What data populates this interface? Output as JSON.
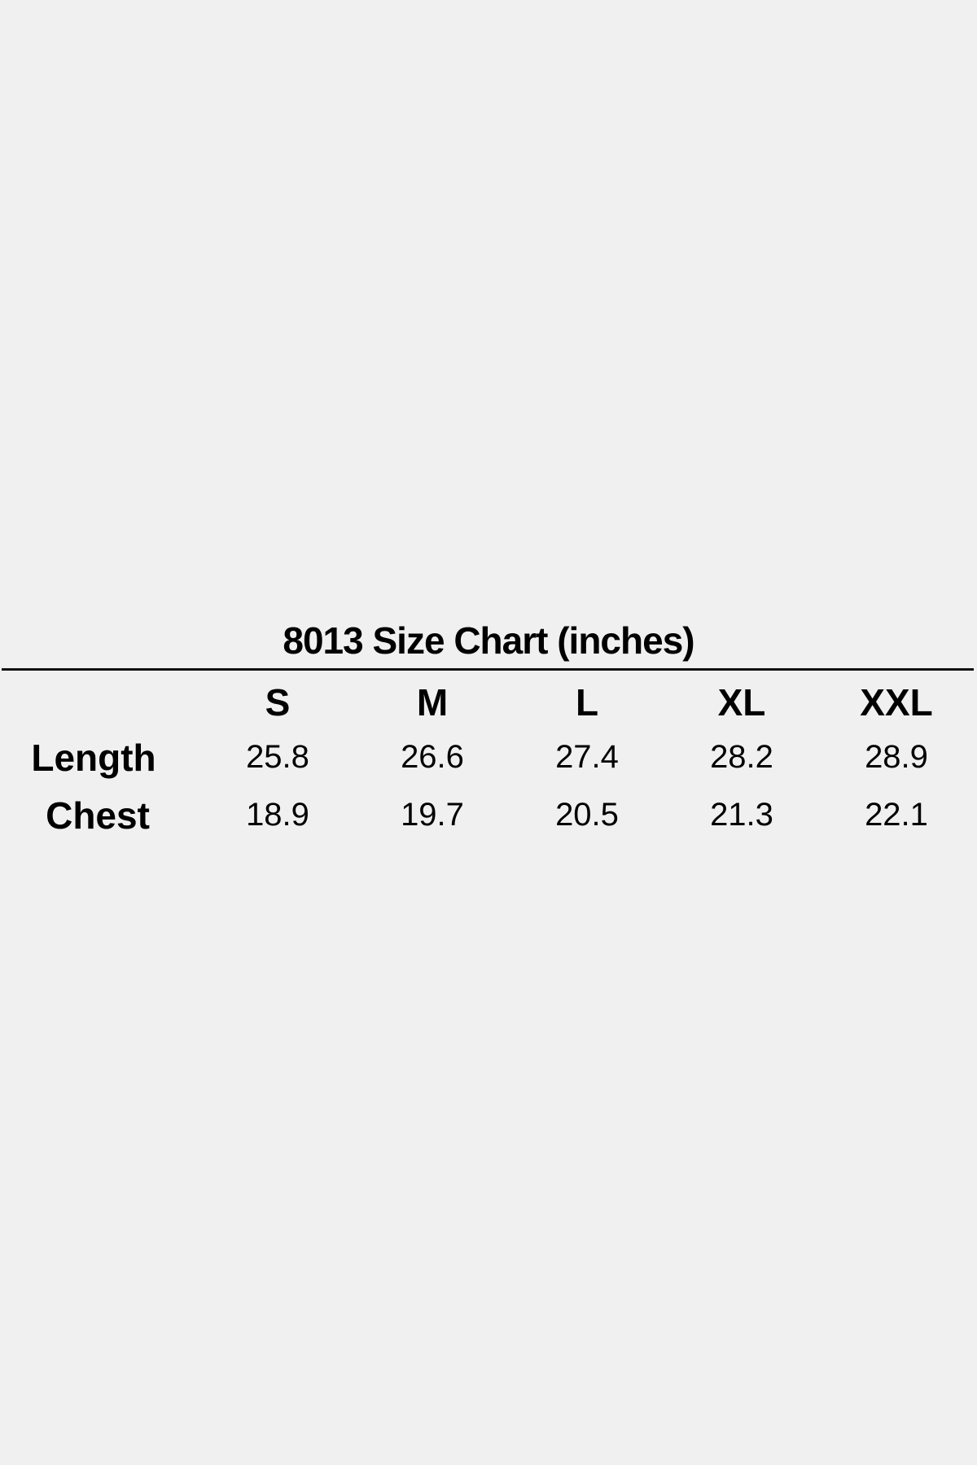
{
  "title": "8013 Size Chart (inches)",
  "sizes": [
    "S",
    "M",
    "L",
    "XL",
    "XXL"
  ],
  "rows": [
    {
      "label": "Length",
      "values": [
        "25.8",
        "26.6",
        "27.4",
        "28.2",
        "28.9"
      ]
    },
    {
      "label": "Chest",
      "values": [
        "18.9",
        "19.7",
        "20.5",
        "21.3",
        "22.1"
      ]
    }
  ]
}
